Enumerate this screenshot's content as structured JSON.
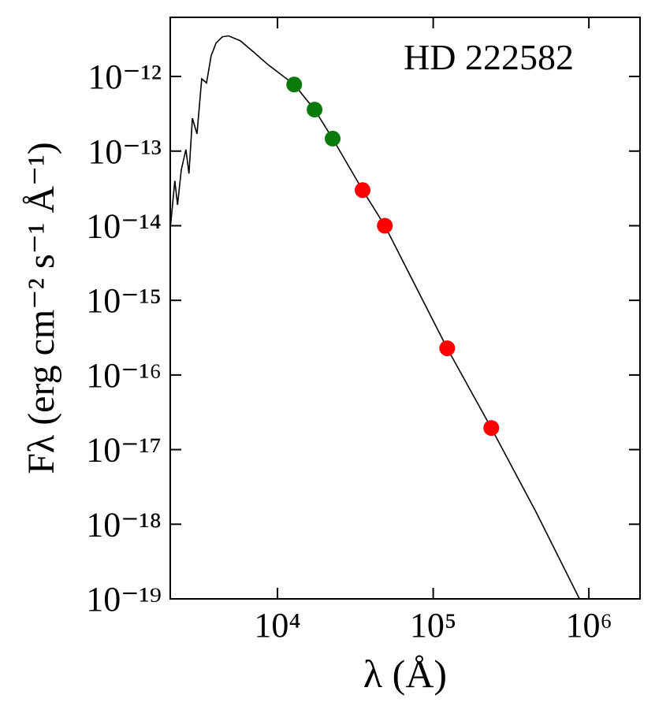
{
  "chart_data": {
    "type": "scatter",
    "annotation": "HD 222582",
    "x_label": "λ (Å)",
    "y_label": "Fλ (erg cm⁻² s⁻¹ Å⁻¹)",
    "xscale": "log",
    "yscale": "log",
    "xlim": [
      2047,
      2130000
    ],
    "ylim": [
      1e-19,
      6.2e-12
    ],
    "xticks": [
      {
        "value": 10000,
        "label": "10⁴"
      },
      {
        "value": 100000,
        "label": "10⁵"
      },
      {
        "value": 1000000,
        "label": "10⁶"
      }
    ],
    "yticks": [
      {
        "value": 1e-19,
        "label": "10⁻¹⁹"
      },
      {
        "value": 1e-18,
        "label": "10⁻¹⁸"
      },
      {
        "value": 1e-17,
        "label": "10⁻¹⁷"
      },
      {
        "value": 1e-16,
        "label": "10⁻¹⁶"
      },
      {
        "value": 1e-15,
        "label": "10⁻¹⁵"
      },
      {
        "value": 1e-14,
        "label": "10⁻¹⁴"
      },
      {
        "value": 1e-13,
        "label": "10⁻¹³"
      },
      {
        "value": 1e-12,
        "label": "10⁻¹²"
      }
    ],
    "model": {
      "color": "#000000",
      "x": [
        2047,
        2190,
        2280,
        2410,
        2580,
        2700,
        2840,
        3040,
        3260,
        3500,
        3750,
        4030,
        4420,
        4850,
        5780,
        6890,
        8690,
        12800,
        17300,
        22600,
        35200,
        48900,
        123000,
        236000,
        458000,
        870000
      ],
      "values": [
        9.1e-15,
        4e-14,
        1.9e-14,
        5.6e-14,
        1.05e-13,
        5e-14,
        2.76e-13,
        1.7e-13,
        9.3e-13,
        8.2e-13,
        1.9e-12,
        2.8e-12,
        3.4e-12,
        3.5e-12,
        3e-12,
        2.2e-12,
        1.44e-12,
        7.8e-13,
        3.6e-13,
        1.47e-13,
        3e-14,
        1e-14,
        2.28e-16,
        1.95e-17,
        1.45e-18,
        1e-19
      ]
    },
    "series": [
      {
        "color": "#0a7a0a",
        "x": [
          12800,
          17300,
          22600
        ],
        "values": [
          7.8e-13,
          3.6e-13,
          1.47e-13
        ]
      },
      {
        "color": "#ff0000",
        "x": [
          35200,
          48900,
          123000,
          236000
        ],
        "values": [
          3e-14,
          1e-14,
          2.28e-16,
          1.95e-17
        ]
      }
    ]
  }
}
